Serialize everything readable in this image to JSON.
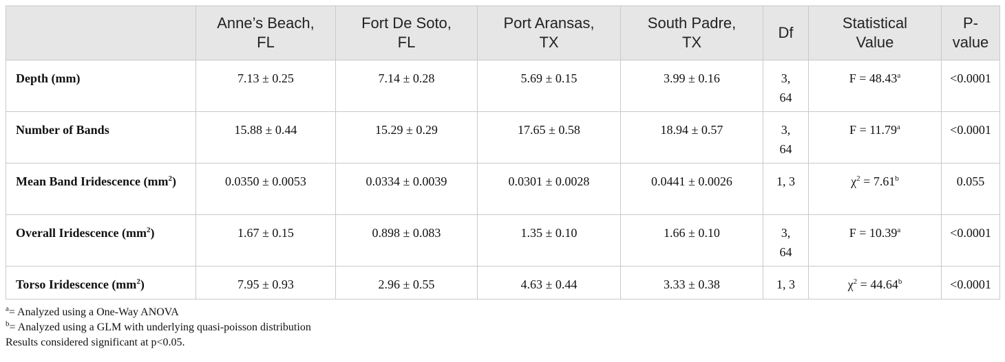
{
  "table": {
    "header": {
      "blank": "",
      "col1": [
        "Anne’s Beach,",
        "FL"
      ],
      "col2": [
        "Fort De Soto,",
        "FL"
      ],
      "col3": [
        "Port Aransas,",
        "TX"
      ],
      "col4": [
        "South Padre,",
        "TX"
      ],
      "df": "Df",
      "stat": [
        "Statistical",
        "Value"
      ],
      "p": [
        "P-",
        "value"
      ]
    },
    "rows": [
      {
        "label": "Depth (mm)",
        "label_sup": "",
        "v1": "7.13 ± 0.25",
        "v2": "7.14 ± 0.28",
        "v3": "5.69 ± 0.15",
        "v4": "3.99 ± 0.16",
        "df": [
          "3,",
          "64"
        ],
        "stat_pre": "F",
        "stat_pre_sup": "",
        "stat_val": " = 48.43",
        "stat_sup": "a",
        "p": "<0.0001"
      },
      {
        "label": "Number of Bands",
        "label_sup": "",
        "v1": "15.88 ± 0.44",
        "v2": "15.29 ± 0.29",
        "v3": "17.65 ± 0.58",
        "v4": "18.94 ± 0.57",
        "df": [
          "3,",
          "64"
        ],
        "stat_pre": "F",
        "stat_pre_sup": "",
        "stat_val": " = 11.79",
        "stat_sup": "a",
        "p": "<0.0001"
      },
      {
        "label": "Mean Band Iridescence (mm",
        "label_sup": "2",
        "label_tail": ")",
        "v1": "0.0350 ± 0.0053",
        "v2": "0.0334 ± 0.0039",
        "v3": "0.0301 ± 0.0028",
        "v4": "0.0441 ± 0.0026",
        "df": [
          "1, 3",
          ""
        ],
        "stat_pre": "χ",
        "stat_pre_sup": "2",
        "stat_val": " = 7.61",
        "stat_sup": "b",
        "p": "0.055"
      },
      {
        "label": "Overall Iridescence (mm",
        "label_sup": "2",
        "label_tail": ")",
        "v1": "1.67 ± 0.15",
        "v2": "0.898 ± 0.083",
        "v3": "1.35 ± 0.10",
        "v4": "1.66 ± 0.10",
        "df": [
          "3,",
          "64"
        ],
        "stat_pre": "F",
        "stat_pre_sup": "",
        "stat_val": " = 10.39",
        "stat_sup": "a",
        "p": "<0.0001"
      },
      {
        "label": "Torso Iridescence (mm",
        "label_sup": "2",
        "label_tail": ")",
        "v1": "7.95 ± 0.93",
        "v2": "2.96 ± 0.55",
        "v3": "4.63 ± 0.44",
        "v4": "3.33 ± 0.38",
        "df": [
          "1, 3",
          ""
        ],
        "stat_pre": "χ",
        "stat_pre_sup": "2",
        "stat_val": " = 44.64",
        "stat_sup": "b",
        "p": "<0.0001"
      }
    ]
  },
  "footnotes": [
    {
      "sup": "a",
      "text": "= Analyzed using a One-Way ANOVA"
    },
    {
      "sup": "b",
      "text": "= Analyzed using a GLM with underlying quasi-poisson distribution"
    },
    {
      "sup": "",
      "text": "Results considered significant at p<0.05."
    }
  ]
}
